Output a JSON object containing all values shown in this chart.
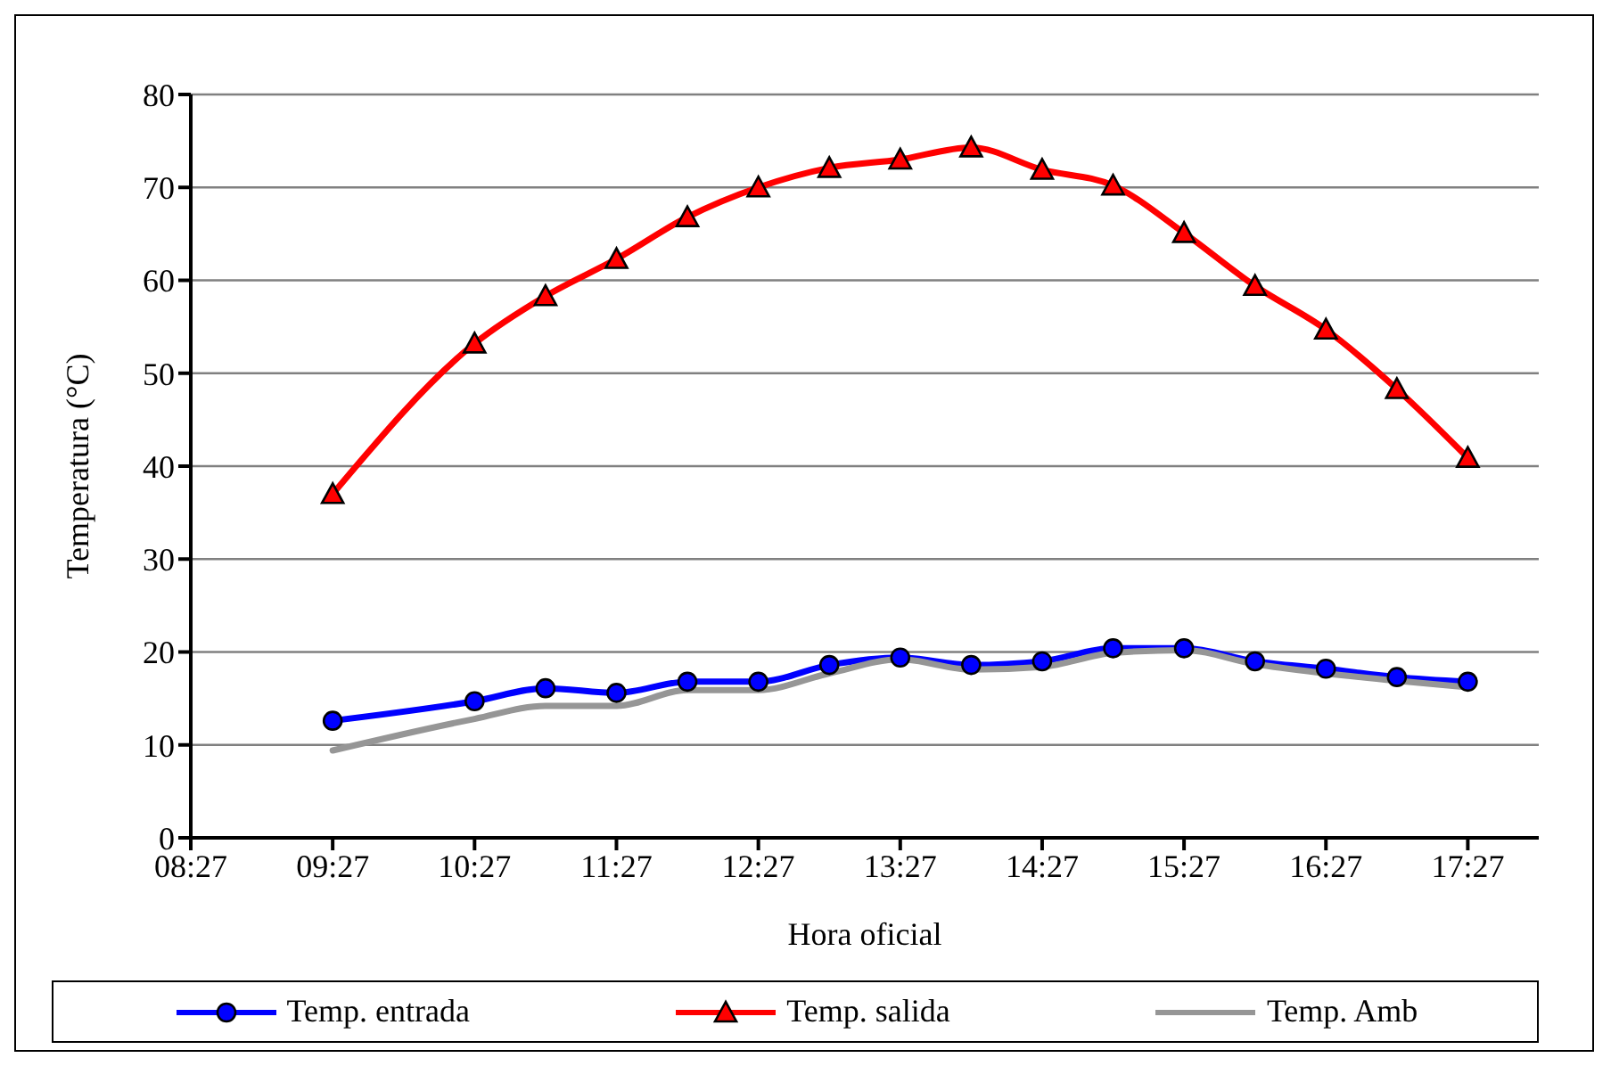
{
  "chart_data": {
    "type": "line",
    "xlabel": "Hora oficial",
    "ylabel": "Temperatura (°C)",
    "x": [
      9.45,
      10.45,
      10.95,
      11.45,
      11.95,
      12.45,
      12.95,
      13.45,
      13.95,
      14.45,
      14.95,
      15.45,
      15.95,
      16.45,
      16.95,
      17.45
    ],
    "xlim": [
      8.45,
      17.95
    ],
    "xticks": [
      {
        "value": 8.45,
        "label": "08:27"
      },
      {
        "value": 9.45,
        "label": "09:27"
      },
      {
        "value": 10.45,
        "label": "10:27"
      },
      {
        "value": 11.45,
        "label": "11:27"
      },
      {
        "value": 12.45,
        "label": "12:27"
      },
      {
        "value": 13.45,
        "label": "13:27"
      },
      {
        "value": 14.45,
        "label": "14:27"
      },
      {
        "value": 15.45,
        "label": "15:27"
      },
      {
        "value": 16.45,
        "label": "16:27"
      },
      {
        "value": 17.45,
        "label": "17:27"
      }
    ],
    "ylim": [
      0,
      80
    ],
    "yticks": [
      0,
      10,
      20,
      30,
      40,
      50,
      60,
      70,
      80
    ],
    "grid": "y",
    "legend": "bottom",
    "series": [
      {
        "name": "Temp. entrada",
        "color": "#0000ff",
        "marker": "circle",
        "values": [
          12.6,
          14.7,
          16.1,
          15.6,
          16.8,
          16.8,
          18.6,
          19.4,
          18.6,
          19.0,
          20.4,
          20.4,
          19.0,
          18.2,
          17.3,
          16.8
        ]
      },
      {
        "name": "Temp. salida",
        "color": "#ff0000",
        "marker": "triangle",
        "values": [
          37.0,
          53.2,
          58.3,
          62.3,
          66.8,
          70.0,
          72.1,
          73.0,
          74.3,
          71.9,
          70.2,
          65.1,
          59.4,
          54.7,
          48.3,
          40.9
        ]
      },
      {
        "name": "Temp. Amb",
        "color": "#969696",
        "marker": "none",
        "values": [
          9.4,
          12.8,
          14.2,
          14.2,
          15.9,
          15.9,
          17.7,
          19.2,
          18.1,
          18.4,
          19.9,
          20.2,
          18.7,
          17.7,
          16.9,
          16.2
        ]
      }
    ]
  }
}
